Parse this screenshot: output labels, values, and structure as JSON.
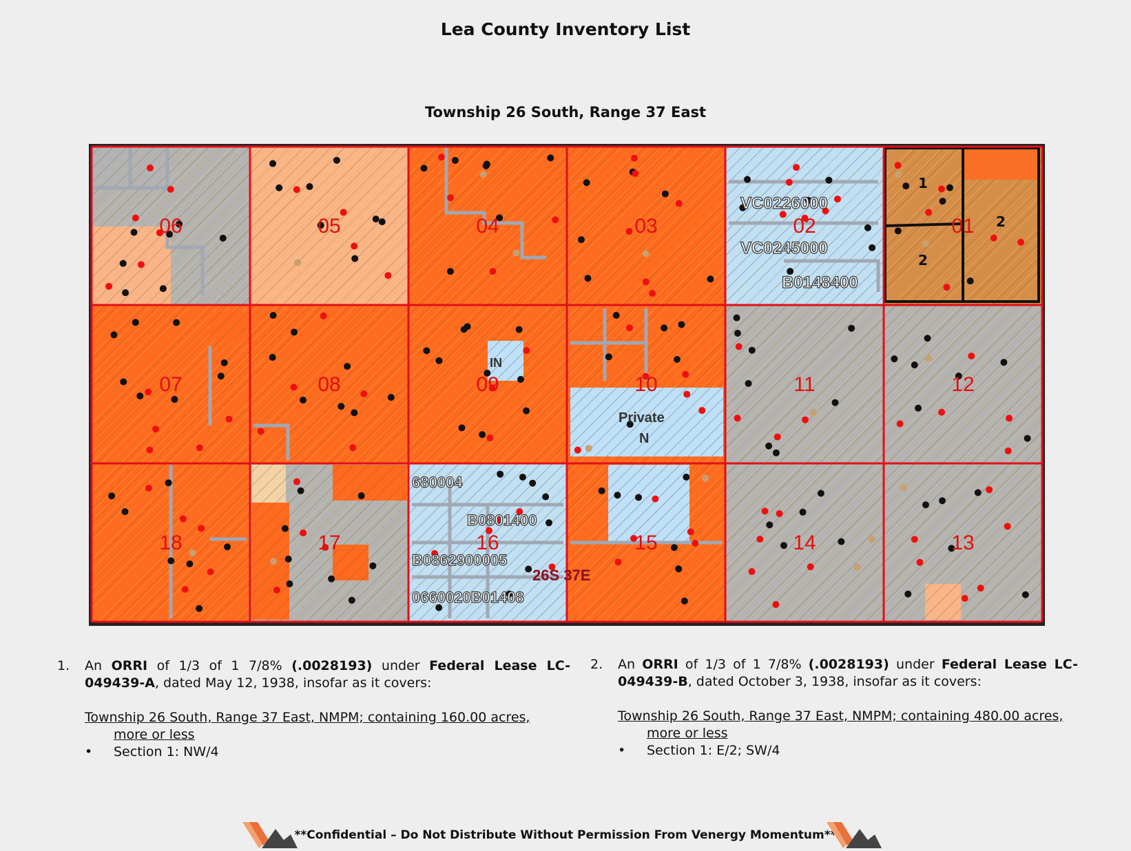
{
  "title": "Lea County Inventory List",
  "subtitle": "Township 26 South, Range 37 East",
  "map": {
    "sections": [
      {
        "label": "06",
        "fill": "#b3b3b3",
        "row": 0,
        "col": 0
      },
      {
        "label": "05",
        "fill": "#f9b487",
        "row": 0,
        "col": 1
      },
      {
        "label": "04",
        "fill": "#ff6a1f",
        "row": 0,
        "col": 2
      },
      {
        "label": "03",
        "fill": "#ff6a1f",
        "row": 0,
        "col": 3
      },
      {
        "label": "02",
        "fill": "#bfe0f6",
        "row": 0,
        "col": 4
      },
      {
        "label": "01",
        "fill": "#d58d4a",
        "row": 0,
        "col": 5
      },
      {
        "label": "07",
        "fill": "#ff6a1f",
        "row": 1,
        "col": 0
      },
      {
        "label": "08",
        "fill": "#ff6a1f",
        "row": 1,
        "col": 1
      },
      {
        "label": "09",
        "fill": "#ff6a1f",
        "row": 1,
        "col": 2
      },
      {
        "label": "10",
        "fill": "#ff6a1f",
        "row": 1,
        "col": 3
      },
      {
        "label": "11",
        "fill": "#b3b3b3",
        "row": 1,
        "col": 4
      },
      {
        "label": "12",
        "fill": "#b3b3b3",
        "row": 1,
        "col": 5
      },
      {
        "label": "18",
        "fill": "#ff6a1f",
        "row": 2,
        "col": 0
      },
      {
        "label": "17",
        "fill": "#b3b3b3",
        "row": 2,
        "col": 1
      },
      {
        "label": "16",
        "fill": "#bfe0f6",
        "row": 2,
        "col": 2
      },
      {
        "label": "15",
        "fill": "#ff6a1f",
        "row": 2,
        "col": 3
      },
      {
        "label": "14",
        "fill": "#b3b3b3",
        "row": 2,
        "col": 4
      },
      {
        "label": "13",
        "fill": "#b3b3b3",
        "row": 2,
        "col": 5
      }
    ],
    "tract_labels": {
      "t1": "1",
      "t2a": "2",
      "t2b": "2"
    },
    "lease_labels": {
      "l1": "VC0226000",
      "l2": "VC0245000",
      "l3": "B0148400",
      "l4": "680004",
      "l5": "B0801400",
      "l6": "B0862900005",
      "l7": "0660020B01408",
      "l8": "Private",
      "l9": "N",
      "l10": "IN",
      "l11": "26S 37E"
    },
    "colors": {
      "section_label": "#e01010",
      "grid_line": "#e0101a",
      "orange": "#ff6a1f",
      "gray": "#b3b3b3",
      "peach": "#f9b487",
      "blue": "#bfe0f6",
      "tan": "#d58d4a"
    }
  },
  "notes": [
    {
      "number": "1.",
      "p1": "An ",
      "orri": "ORRI",
      "p2": " of 1/3 of 1 7/8% ",
      "decimal": "(.0028193)",
      "p3": " under ",
      "lease": "Federal Lease LC-049439-A",
      "p4": ", dated May 12, 1938, insofar as it covers:",
      "twp1": "Township 26 South, Range 37 East, NMPM; containing 160.00 acres,",
      "twp2": "more or less",
      "bullet_symbol": "•",
      "section": "Section 1:  NW/4"
    },
    {
      "number": "2.",
      "p1": "An ",
      "orri": "ORRI",
      "p2": " of 1/3 of 1 7/8% ",
      "decimal": "(.0028193)",
      "p3": " under ",
      "lease": "Federal Lease LC-049439-B",
      "p4": ", dated October 3, 1938, insofar as it covers:",
      "twp1": "Township 26 South, Range 37 East, NMPM; containing 480.00 acres,",
      "twp2": "more or less",
      "bullet_symbol": "•",
      "section": "Section 1:  E/2; SW/4"
    }
  ],
  "footer": "**Confidential – Do Not Distribute Without Permission From Venergy Momentum**"
}
